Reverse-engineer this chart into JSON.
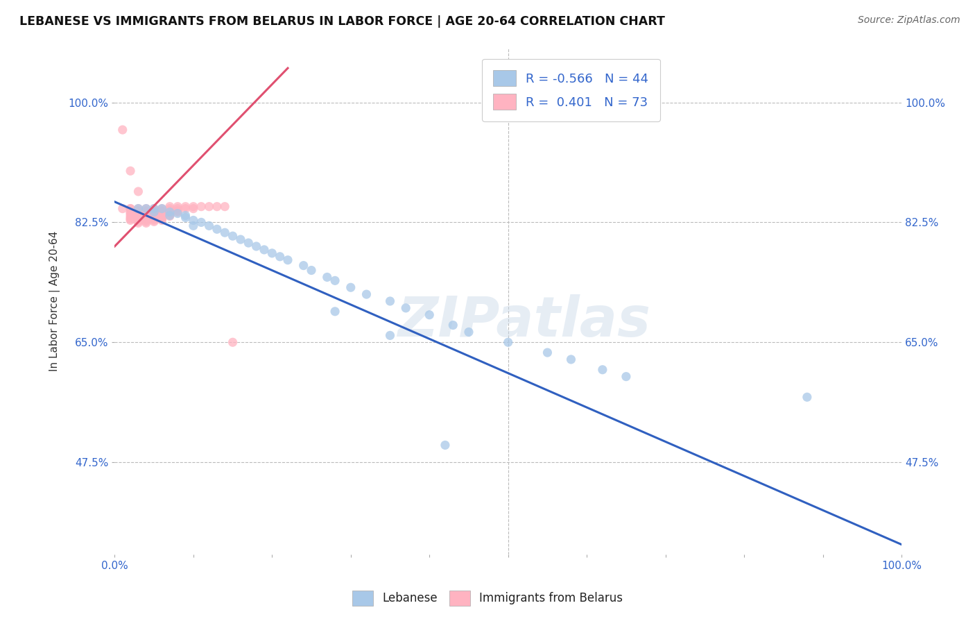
{
  "title": "LEBANESE VS IMMIGRANTS FROM BELARUS IN LABOR FORCE | AGE 20-64 CORRELATION CHART",
  "source": "Source: ZipAtlas.com",
  "ylabel": "In Labor Force | Age 20-64",
  "xlim": [
    0.0,
    1.0
  ],
  "ylim": [
    0.34,
    1.08
  ],
  "yticks": [
    0.475,
    0.65,
    0.825,
    1.0
  ],
  "ytick_labels": [
    "47.5%",
    "65.0%",
    "82.5%",
    "100.0%"
  ],
  "xtick_labels": [
    "0.0%",
    "",
    "",
    "",
    "",
    "",
    "",
    "",
    "",
    "",
    "100.0%"
  ],
  "legend1_label": "Lebanese",
  "legend2_label": "Immigrants from Belarus",
  "r1": -0.566,
  "n1": 44,
  "r2": 0.401,
  "n2": 73,
  "blue_color": "#a8c8e8",
  "pink_color": "#ffb3c1",
  "trend_blue": "#3060c0",
  "trend_pink": "#e05070",
  "watermark": "ZIPatlas",
  "title_color": "#111111",
  "axis_label_color": "#333333",
  "tick_color": "#3366cc",
  "grid_color": "#bbbbbb",
  "blue_line_x": [
    0.0,
    1.0
  ],
  "blue_line_y": [
    0.855,
    0.355
  ],
  "pink_line_x": [
    0.0,
    0.22
  ],
  "pink_line_y": [
    0.79,
    1.05
  ],
  "blue_scatter_x": [
    0.03,
    0.04,
    0.05,
    0.05,
    0.06,
    0.07,
    0.07,
    0.08,
    0.09,
    0.1,
    0.11,
    0.12,
    0.13,
    0.14,
    0.15,
    0.16,
    0.17,
    0.18,
    0.19,
    0.2,
    0.21,
    0.22,
    0.24,
    0.25,
    0.27,
    0.28,
    0.3,
    0.32,
    0.35,
    0.37,
    0.4,
    0.43,
    0.45,
    0.5,
    0.55,
    0.58,
    0.62,
    0.65,
    0.28,
    0.35,
    0.88,
    0.42,
    0.1,
    0.09
  ],
  "blue_scatter_y": [
    0.845,
    0.845,
    0.845,
    0.84,
    0.845,
    0.84,
    0.835,
    0.838,
    0.832,
    0.828,
    0.825,
    0.82,
    0.815,
    0.81,
    0.805,
    0.8,
    0.795,
    0.79,
    0.785,
    0.78,
    0.775,
    0.77,
    0.762,
    0.755,
    0.745,
    0.74,
    0.73,
    0.72,
    0.71,
    0.7,
    0.69,
    0.675,
    0.665,
    0.65,
    0.635,
    0.625,
    0.61,
    0.6,
    0.695,
    0.66,
    0.57,
    0.5,
    0.82,
    0.835
  ],
  "pink_scatter_x": [
    0.01,
    0.01,
    0.02,
    0.02,
    0.02,
    0.02,
    0.02,
    0.02,
    0.02,
    0.02,
    0.03,
    0.03,
    0.03,
    0.03,
    0.03,
    0.03,
    0.03,
    0.03,
    0.03,
    0.03,
    0.03,
    0.04,
    0.04,
    0.04,
    0.04,
    0.04,
    0.04,
    0.04,
    0.04,
    0.04,
    0.04,
    0.04,
    0.05,
    0.05,
    0.05,
    0.05,
    0.05,
    0.05,
    0.05,
    0.05,
    0.05,
    0.05,
    0.06,
    0.06,
    0.06,
    0.06,
    0.06,
    0.06,
    0.06,
    0.06,
    0.06,
    0.07,
    0.07,
    0.07,
    0.07,
    0.07,
    0.07,
    0.07,
    0.08,
    0.08,
    0.08,
    0.08,
    0.09,
    0.09,
    0.1,
    0.1,
    0.11,
    0.12,
    0.13,
    0.14,
    0.02,
    0.03,
    0.15
  ],
  "pink_scatter_y": [
    0.845,
    0.96,
    0.845,
    0.845,
    0.84,
    0.838,
    0.835,
    0.832,
    0.83,
    0.828,
    0.845,
    0.842,
    0.84,
    0.838,
    0.836,
    0.834,
    0.832,
    0.83,
    0.828,
    0.826,
    0.824,
    0.845,
    0.842,
    0.84,
    0.838,
    0.836,
    0.834,
    0.832,
    0.83,
    0.828,
    0.826,
    0.824,
    0.845,
    0.842,
    0.84,
    0.838,
    0.836,
    0.834,
    0.832,
    0.83,
    0.828,
    0.826,
    0.845,
    0.842,
    0.84,
    0.838,
    0.836,
    0.834,
    0.832,
    0.83,
    0.828,
    0.848,
    0.845,
    0.842,
    0.84,
    0.838,
    0.836,
    0.834,
    0.848,
    0.845,
    0.842,
    0.84,
    0.848,
    0.845,
    0.848,
    0.845,
    0.848,
    0.848,
    0.848,
    0.848,
    0.9,
    0.87,
    0.65
  ]
}
